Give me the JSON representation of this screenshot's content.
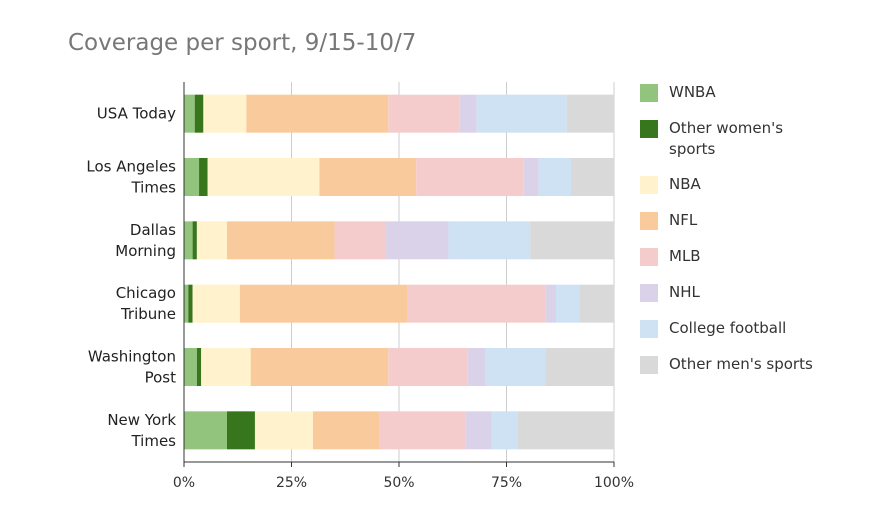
{
  "chart_data": {
    "type": "bar",
    "orientation": "horizontal",
    "stacked": true,
    "normalized": true,
    "title": "Coverage per sport, 9/15-10/7",
    "xlabel": "",
    "ylabel": "",
    "xlim": [
      0,
      1
    ],
    "xticks": [
      "0%",
      "25%",
      "50%",
      "75%",
      "100%"
    ],
    "xtick_values": [
      0,
      0.25,
      0.5,
      0.75,
      1
    ],
    "grid": "vertical",
    "legend_position": "right",
    "categories": [
      [
        "USA Today"
      ],
      [
        "Los Angeles",
        "Times"
      ],
      [
        "Dallas",
        "Morning"
      ],
      [
        "Chicago",
        "Tribune"
      ],
      [
        "Washington",
        "Post"
      ],
      [
        "New York",
        "Times"
      ]
    ],
    "series": [
      {
        "name": "WNBA",
        "legend_lines": [
          "WNBA"
        ],
        "color": "#93c47d",
        "values": [
          0.025,
          0.035,
          0.02,
          0.01,
          0.03,
          0.1
        ]
      },
      {
        "name": "Other women's sports",
        "legend_lines": [
          "Other women's",
          "sports"
        ],
        "color": "#38761d",
        "values": [
          0.02,
          0.02,
          0.01,
          0.01,
          0.01,
          0.065
        ]
      },
      {
        "name": "NBA",
        "legend_lines": [
          "NBA"
        ],
        "color": "#fff2cc",
        "values": [
          0.1,
          0.26,
          0.07,
          0.11,
          0.115,
          0.135
        ]
      },
      {
        "name": "NFL",
        "legend_lines": [
          "NFL"
        ],
        "color": "#f9cb9c",
        "values": [
          0.33,
          0.225,
          0.25,
          0.39,
          0.32,
          0.155
        ]
      },
      {
        "name": "MLB",
        "legend_lines": [
          "MLB"
        ],
        "color": "#f4cccc",
        "values": [
          0.165,
          0.25,
          0.12,
          0.32,
          0.185,
          0.2
        ]
      },
      {
        "name": "NHL",
        "legend_lines": [
          "NHL"
        ],
        "color": "#d9d2e9",
        "values": [
          0.04,
          0.035,
          0.145,
          0.025,
          0.04,
          0.06
        ]
      },
      {
        "name": "College football",
        "legend_lines": [
          "College football"
        ],
        "color": "#cfe2f3",
        "values": [
          0.21,
          0.075,
          0.19,
          0.055,
          0.14,
          0.06
        ]
      },
      {
        "name": "Other men's sports",
        "legend_lines": [
          "Other men's sports"
        ],
        "color": "#d9d9d9",
        "values": [
          0.11,
          0.1,
          0.195,
          0.08,
          0.16,
          0.225
        ]
      }
    ]
  }
}
